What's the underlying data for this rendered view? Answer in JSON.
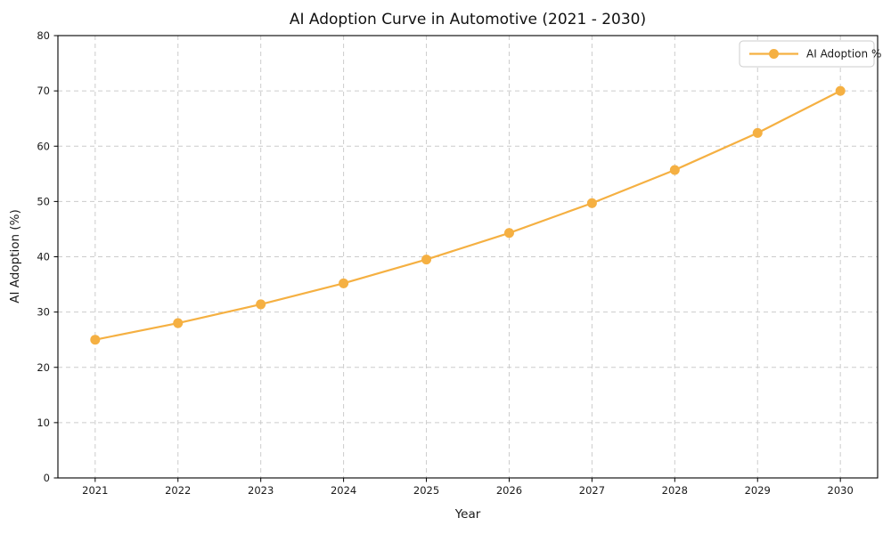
{
  "chart_data": {
    "type": "line",
    "title": "AI Adoption Curve in Automotive (2021 - 2030)",
    "xlabel": "Year",
    "ylabel": "AI Adoption (%)",
    "x": [
      2021,
      2022,
      2023,
      2024,
      2025,
      2026,
      2027,
      2028,
      2029,
      2030
    ],
    "series": [
      {
        "name": "AI Adoption %",
        "values": [
          25.0,
          28.0,
          31.4,
          35.2,
          39.5,
          44.3,
          49.7,
          55.7,
          62.4,
          70.0
        ],
        "color": "#F5B042",
        "marker": "circle",
        "line_width": 2.2,
        "marker_radius": 5.5
      }
    ],
    "ylim": [
      0,
      80
    ],
    "yticks": [
      0,
      10,
      20,
      30,
      40,
      50,
      60,
      70,
      80
    ],
    "grid": true,
    "grid_style": "dashed",
    "grid_color": "#cccccc",
    "spine_color": "#000000",
    "legend": {
      "position": "upper right",
      "entries": [
        "AI Adoption %"
      ],
      "border_color": "#cccccc",
      "background": "#ffffff"
    },
    "background": "#ffffff"
  }
}
